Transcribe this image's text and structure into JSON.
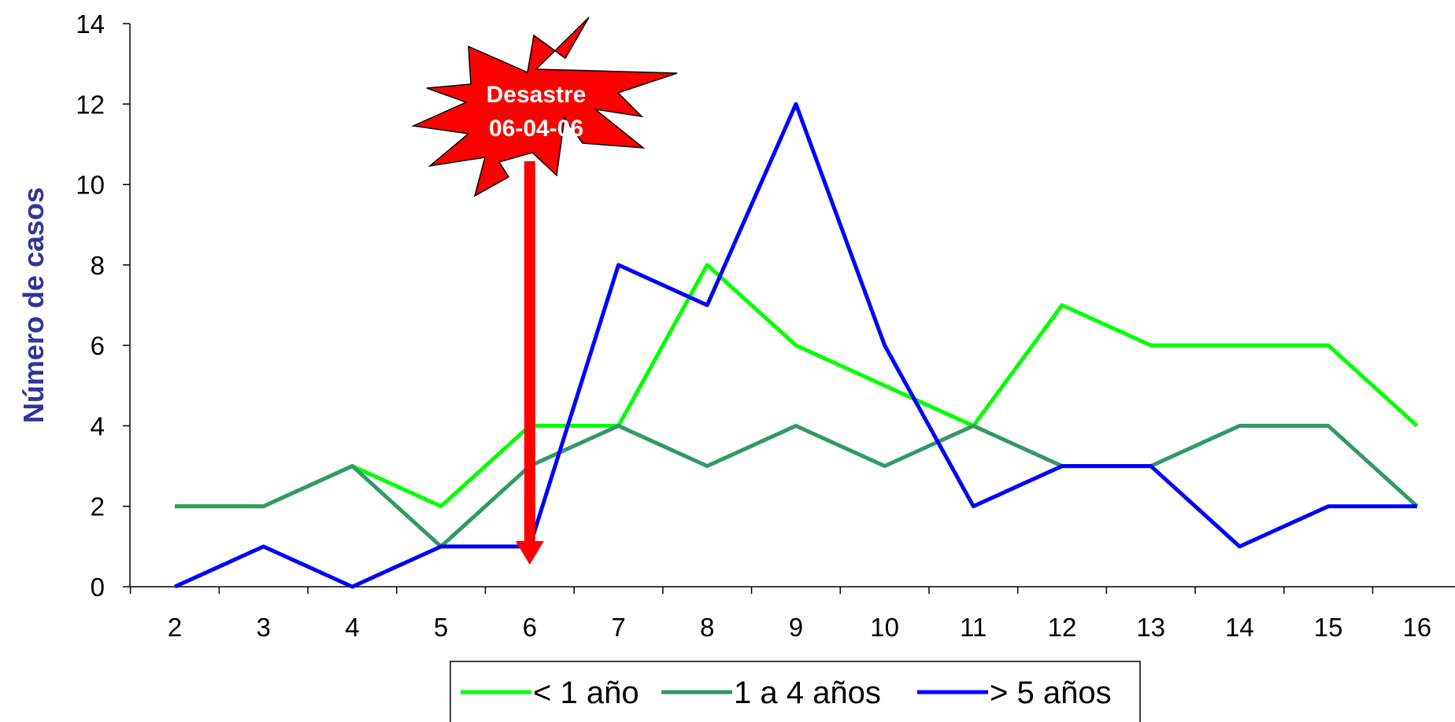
{
  "chart_data": {
    "type": "line",
    "title": "",
    "xlabel": "",
    "ylabel": "Número de casos",
    "x": [
      2,
      3,
      4,
      5,
      6,
      7,
      8,
      9,
      10,
      11,
      12,
      13,
      14,
      15,
      16
    ],
    "ylim": [
      0,
      14
    ],
    "yticks": [
      0,
      2,
      4,
      6,
      8,
      10,
      12,
      14
    ],
    "grid": false,
    "legend_position": "bottom",
    "series": [
      {
        "name": "< 1 año",
        "color": "#00ff00",
        "values": [
          2,
          2,
          3,
          2,
          4,
          4,
          8,
          6,
          5,
          4,
          7,
          6,
          6,
          6,
          4
        ]
      },
      {
        "name": "1 a 4 años",
        "color": "#339966",
        "values": [
          2,
          2,
          3,
          1,
          3,
          4,
          3,
          4,
          3,
          4,
          3,
          3,
          4,
          4,
          2
        ]
      },
      {
        "name": "> 5 años",
        "color": "#0000ff",
        "values": [
          0,
          1,
          0,
          1,
          1,
          8,
          7,
          12,
          6,
          2,
          3,
          3,
          1,
          2,
          2
        ]
      }
    ],
    "annotation": {
      "lines": [
        "Desastre",
        "06-04-06"
      ],
      "x": 6,
      "burst_color": "#ff0000",
      "arrow_color": "#ff0000"
    }
  }
}
